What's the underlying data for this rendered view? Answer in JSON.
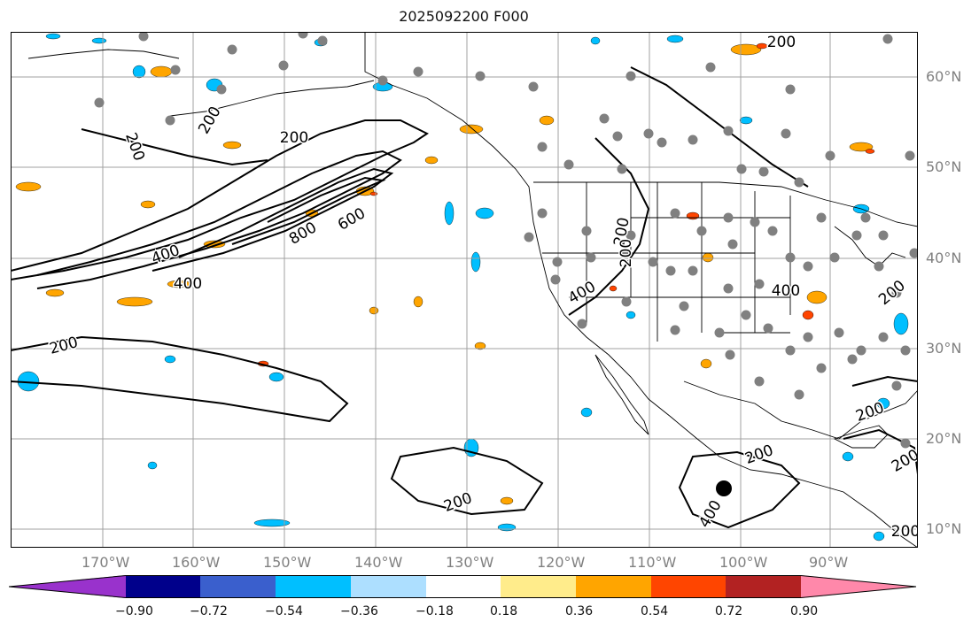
{
  "title": "2025092200 F000",
  "lat_labels": [
    "60°N",
    "50°N",
    "40°N",
    "30°N",
    "20°N",
    "10°N"
  ],
  "lon_labels": [
    "170°W",
    "160°W",
    "150°W",
    "140°W",
    "130°W",
    "120°W",
    "110°W",
    "100°W",
    "90°W"
  ],
  "contour_labels": [
    "200",
    "200",
    "200",
    "400",
    "400",
    "600",
    "800",
    "200",
    "200",
    "400",
    "400",
    "200",
    "200",
    "200",
    "200",
    "400",
    "200",
    "200",
    "200",
    "200"
  ],
  "colorbar": {
    "ticks": [
      "−0.90",
      "−0.72",
      "−0.54",
      "−0.36",
      "−0.18",
      "0.18",
      "0.36",
      "0.54",
      "0.72",
      "0.90"
    ],
    "colors": [
      "#9932CC",
      "#00008B",
      "#3A5FCD",
      "#00BFFF",
      "#ADDFFF",
      "#FFFFFF",
      "#FFEC8B",
      "#FFA500",
      "#FF4500",
      "#B22222",
      "#FF88AA"
    ]
  },
  "legend_colors": {
    "map_background": "#FFFFFF",
    "grid": "#A0A0A0",
    "coast_and_borders": "#000000",
    "contour_lines": "#000000",
    "station_markers": "#808080",
    "highlight_marker": "#000000"
  }
}
